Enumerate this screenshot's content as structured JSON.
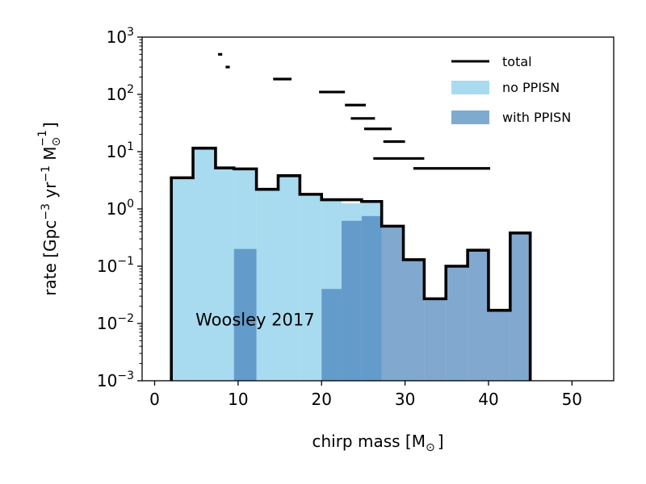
{
  "chart_data": {
    "type": "histogram",
    "title": "",
    "xlabel": "chirp mass [M",
    "xlabel_sub": "⊙",
    "xlabel_close": "]",
    "ylabel_parts": {
      "pre": "rate [Gpc",
      "exp1": "−3",
      "mid": " yr",
      "exp2": "−1",
      "m": " M",
      "sub": "⊙",
      "exp3": "−1",
      "post": "]"
    },
    "xlim": [
      -1.5,
      55
    ],
    "ylim": [
      0.001,
      1000
    ],
    "yscale": "log",
    "xticks": [
      "0",
      "10",
      "20",
      "30",
      "40",
      "50"
    ],
    "xtick_values": [
      0,
      10,
      20,
      30,
      40,
      50
    ],
    "yticks": [
      {
        "base": "10",
        "exp": "−3",
        "value": 0.001
      },
      {
        "base": "10",
        "exp": "−2",
        "value": 0.01
      },
      {
        "base": "10",
        "exp": "−1",
        "value": 0.1
      },
      {
        "base": "10",
        "exp": "0",
        "value": 1
      },
      {
        "base": "10",
        "exp": "1",
        "value": 10
      },
      {
        "base": "10",
        "exp": "2",
        "value": 100
      },
      {
        "base": "10",
        "exp": "3",
        "value": 1000
      }
    ],
    "bin_edges": [
      2,
      4.6,
      7.3,
      9.5,
      12.2,
      14.8,
      17.4,
      20,
      22.4,
      24.8,
      27.2,
      29.8,
      32.3,
      34.9,
      37.5,
      40,
      42.6,
      45
    ],
    "series": [
      {
        "name": "no PPISN",
        "color": "#a8dbef",
        "values": [
          3.5,
          11.5,
          5.2,
          5.0,
          2.2,
          3.8,
          1.8,
          1.45,
          1.25,
          1.35,
          0,
          0,
          0,
          0,
          0,
          0,
          0
        ]
      },
      {
        "name": "with PPISN",
        "color": "#7eaacf",
        "values": [
          0,
          0,
          0,
          0.2,
          0,
          0,
          0,
          0.04,
          0.62,
          0.75,
          0.5,
          0.13,
          0.027,
          0.1,
          0.19,
          0.017,
          0.38
        ]
      },
      {
        "name": "total",
        "color": "#000000",
        "values": [
          3.5,
          11.5,
          5.2,
          5.0,
          2.2,
          3.8,
          1.8,
          1.45,
          1.45,
          1.35,
          0.5,
          0.13,
          0.027,
          0.1,
          0.19,
          0.017,
          0.38
        ]
      }
    ],
    "extra_segments": [
      {
        "x0": 7.6,
        "x1": 8.1,
        "y": 500
      },
      {
        "x0": 8.5,
        "x1": 9.0,
        "y": 300
      },
      {
        "x0": 14.2,
        "x1": 16.4,
        "y": 185
      },
      {
        "x0": 19.7,
        "x1": 22.8,
        "y": 110
      },
      {
        "x0": 22.8,
        "x1": 25.3,
        "y": 65
      },
      {
        "x0": 23.5,
        "x1": 26.4,
        "y": 38
      },
      {
        "x0": 25.1,
        "x1": 28.4,
        "y": 25
      },
      {
        "x0": 27.4,
        "x1": 30.0,
        "y": 15
      },
      {
        "x0": 26.2,
        "x1": 32.3,
        "y": 7.6
      },
      {
        "x0": 31.0,
        "x1": 40.2,
        "y": 5.1
      }
    ],
    "legend": {
      "placement": "top-right",
      "entries": [
        {
          "label": "total",
          "kind": "line",
          "color": "#000000"
        },
        {
          "label": "no PPISN",
          "kind": "patch",
          "color": "#a8dbef"
        },
        {
          "label": "with PPISN",
          "kind": "patch",
          "color": "#7eaacf"
        }
      ]
    },
    "annotation": {
      "text": "Woosley 2017",
      "x": 4.9,
      "y": 0.0115
    }
  }
}
